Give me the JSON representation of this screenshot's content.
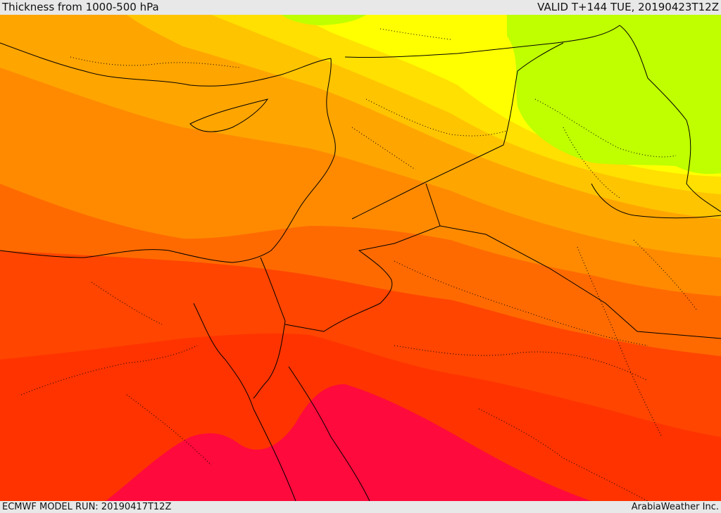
{
  "header": {
    "title": "Thickness from 1000-500 hPa",
    "valid": "VALID T+144 TUE, 20190423T12Z"
  },
  "footer": {
    "model_run": "ECMWF MODEL RUN: 20190417T12Z",
    "credit": "ArabiaWeather Inc."
  },
  "colors": {
    "band_green": "#bfff00",
    "band_yellow": "#ffff00",
    "band_gold": "#ffe000",
    "band_amber": "#ffc400",
    "band_orange_light": "#ffa500",
    "band_orange": "#ff8a00",
    "band_orange_dark": "#ff6a00",
    "band_red_orange": "#ff4500",
    "band_red": "#ff3300",
    "band_crimson": "#ff0a3c",
    "border_line": "#000000"
  }
}
